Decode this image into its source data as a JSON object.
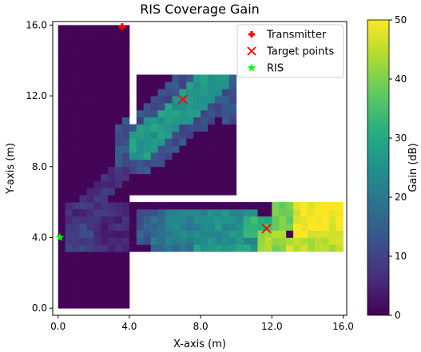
{
  "chart_data": {
    "type": "heatmap",
    "title": "RIS Coverage Gain",
    "xlabel": "X-axis (m)",
    "ylabel": "Y-axis (m)",
    "xlim": [
      -0.3,
      16.2
    ],
    "ylim": [
      -0.4,
      16.2
    ],
    "xticks": [
      0.0,
      4.0,
      8.0,
      12.0,
      16.0
    ],
    "xtick_labels": [
      "0.0",
      "4.0",
      "8.0",
      "12.0",
      "16.0"
    ],
    "yticks": [
      0.0,
      4.0,
      8.0,
      12.0,
      16.0
    ],
    "ytick_labels": [
      "0.0",
      "4.0",
      "8.0",
      "12.0",
      "16.0"
    ],
    "grid": false,
    "cell_size_m": 0.4,
    "colorbar": {
      "label": "Gain (dB)",
      "min": 0,
      "max": 50,
      "ticks": [
        0,
        10,
        20,
        30,
        40,
        50
      ],
      "tick_labels": [
        "0",
        "10",
        "20",
        "30",
        "40",
        "50"
      ],
      "colormap": "viridis"
    },
    "walls": [
      {
        "x0": 0.0,
        "x1": 4.0,
        "y0": 0.0,
        "y1": 16.0
      },
      {
        "x0": 4.0,
        "x1": 10.0,
        "y0": 6.4,
        "y1": 13.6
      },
      {
        "x0": 4.0,
        "x1": 16.0,
        "y0": 3.2,
        "y1": 6.0
      }
    ],
    "holes": [
      {
        "x0": 4.0,
        "x1": 4.4,
        "y0": 10.4,
        "y1": 13.6
      },
      {
        "x0": 4.0,
        "x1": 10.0,
        "y0": 13.2,
        "y1": 13.6
      }
    ],
    "gain_regions": [
      {
        "x0": 0.4,
        "x1": 4.0,
        "y0": 3.2,
        "y1": 6.0,
        "gain": 6
      },
      {
        "x0": 0.4,
        "x1": 2.0,
        "y0": 3.2,
        "y1": 4.8,
        "gain": 9
      },
      {
        "x0": 4.4,
        "x1": 6.0,
        "y0": 3.6,
        "y1": 5.6,
        "gain": 14
      },
      {
        "x0": 5.2,
        "x1": 7.6,
        "y0": 3.2,
        "y1": 5.2,
        "gain": 18
      },
      {
        "x0": 6.0,
        "x1": 8.8,
        "y0": 3.6,
        "y1": 5.6,
        "gain": 22
      },
      {
        "x0": 7.6,
        "x1": 12.8,
        "y0": 3.2,
        "y1": 3.6,
        "gain": 28
      },
      {
        "x0": 8.4,
        "x1": 11.2,
        "y0": 3.6,
        "y1": 5.6,
        "gain": 25
      },
      {
        "x0": 10.4,
        "x1": 12.0,
        "y0": 4.0,
        "y1": 5.2,
        "gain": 32
      },
      {
        "x0": 11.2,
        "x1": 12.8,
        "y0": 3.2,
        "y1": 4.4,
        "gain": 42
      },
      {
        "x0": 12.0,
        "x1": 13.2,
        "y0": 4.4,
        "y1": 6.0,
        "gain": 38
      },
      {
        "x0": 12.8,
        "x1": 16.0,
        "y0": 3.2,
        "y1": 4.0,
        "gain": 45
      },
      {
        "x0": 13.2,
        "x1": 16.0,
        "y0": 4.0,
        "y1": 6.0,
        "gain": 49
      },
      {
        "x0": 9.2,
        "x1": 10.0,
        "y0": 10.4,
        "y1": 12.8,
        "gain": 12
      },
      {
        "x0": 4.4,
        "x1": 5.2,
        "y0": 8.0,
        "y1": 9.6,
        "gain": 10
      }
    ],
    "diagonal_band": {
      "from": [
        4.6,
        9.2
      ],
      "to": [
        9.0,
        13.0
      ],
      "width_m": 1.6,
      "gain": 27
    },
    "faint_band": {
      "from": [
        1.2,
        5.2
      ],
      "to": [
        4.0,
        8.4
      ],
      "width_m": 1.2,
      "gain": 7
    },
    "transmitter": {
      "x": 3.6,
      "y": 15.9
    },
    "target_points": [
      {
        "x": 7.0,
        "y": 11.8
      },
      {
        "x": 11.7,
        "y": 4.5
      }
    ],
    "ris": {
      "x": 0.1,
      "y": 4.0
    },
    "legend": {
      "placement": "top-right",
      "entries": [
        {
          "label": "Transmitter",
          "marker": "plus",
          "color": "#ff0000"
        },
        {
          "label": "Target points",
          "marker": "x",
          "color": "#ff0000"
        },
        {
          "label": "RIS",
          "marker": "star",
          "color": "#00ff00"
        }
      ]
    }
  }
}
